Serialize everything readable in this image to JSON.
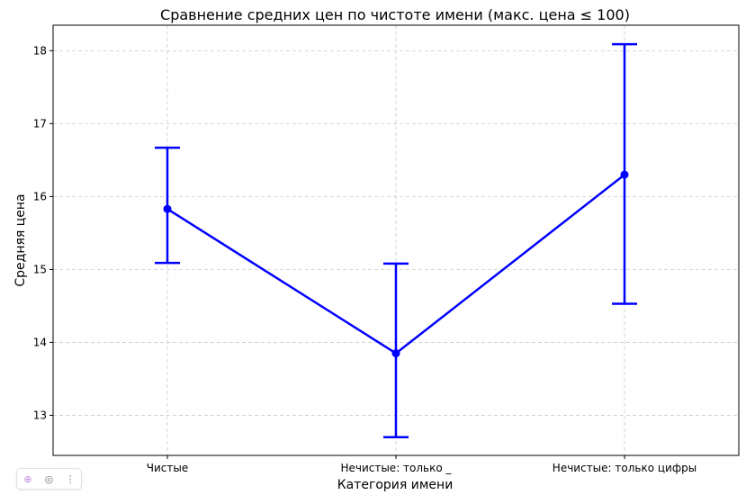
{
  "chart_data": {
    "type": "line",
    "title": "Сравнение средних цен по чистоте имени (макс. цена ≤ 100)",
    "xlabel": "Категория имени",
    "ylabel": "Средняя цена",
    "categories": [
      "Чистые",
      "Нечистые: только _",
      "Нечистые: только цифры"
    ],
    "series": [
      {
        "name": "Средняя цена",
        "values": [
          15.83,
          13.85,
          16.3
        ],
        "err_low": [
          15.09,
          12.7,
          14.53
        ],
        "err_high": [
          16.67,
          15.08,
          18.09
        ]
      }
    ],
    "ylim": [
      12.45,
      18.35
    ],
    "yticks": [
      13,
      14,
      15,
      16,
      17,
      18
    ],
    "grid": true,
    "color": "#0000ff"
  },
  "toolbar": {
    "icons": [
      "ai-sparkle-icon",
      "camera-icon",
      "more-vert-icon"
    ],
    "ai_glyph": "⊕",
    "camera_glyph": "◎",
    "more_glyph": "⋮"
  }
}
